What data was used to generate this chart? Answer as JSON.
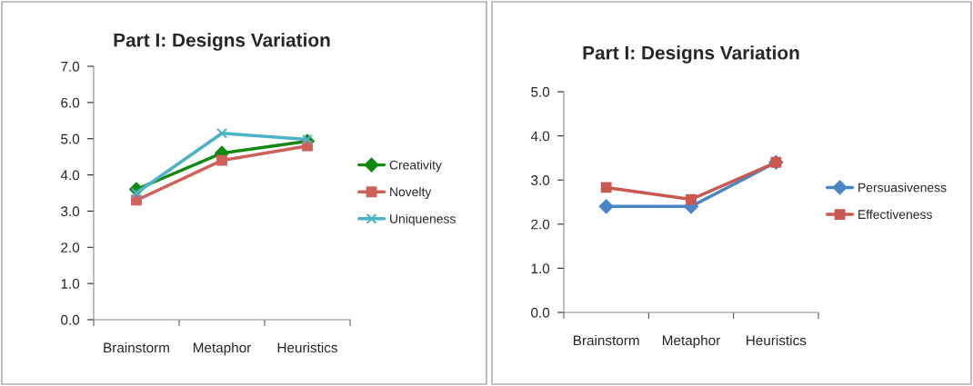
{
  "chart_data": [
    {
      "type": "line",
      "title": "Part I: Designs Variation",
      "categories": [
        "Brainstorm",
        "Metaphor",
        "Heuristics"
      ],
      "ylim": [
        0,
        7
      ],
      "yticks": [
        {
          "value": 0,
          "label": "0.0"
        },
        {
          "value": 1,
          "label": "1.0"
        },
        {
          "value": 2,
          "label": "2.0"
        },
        {
          "value": 3,
          "label": "3.0"
        },
        {
          "value": 4,
          "label": "4.0"
        },
        {
          "value": 5,
          "label": "5.0"
        },
        {
          "value": 6,
          "label": "6.0"
        },
        {
          "value": 7,
          "label": "7.0"
        }
      ],
      "grid": false,
      "legend": "right",
      "series": [
        {
          "name": "Creativity",
          "color": "#128a12",
          "marker": "diamond",
          "values": [
            3.6,
            4.6,
            4.93
          ]
        },
        {
          "name": "Novelty",
          "color": "#d0605a",
          "marker": "square",
          "values": [
            3.3,
            4.4,
            4.8
          ]
        },
        {
          "name": "Uniqueness",
          "color": "#4bb3c8",
          "marker": "cross",
          "values": [
            3.5,
            5.15,
            4.98
          ]
        }
      ]
    },
    {
      "type": "line",
      "title": "Part I: Designs Variation",
      "categories": [
        "Brainstorm",
        "Metaphor",
        "Heuristics"
      ],
      "ylim": [
        0,
        5
      ],
      "yticks": [
        {
          "value": 0,
          "label": "0.0"
        },
        {
          "value": 1,
          "label": "1.0"
        },
        {
          "value": 2,
          "label": "2.0"
        },
        {
          "value": 3,
          "label": "3.0"
        },
        {
          "value": 4,
          "label": "4.0"
        },
        {
          "value": 5,
          "label": "5.0"
        }
      ],
      "grid": false,
      "legend": "right",
      "series": [
        {
          "name": "Persuasiveness",
          "color": "#4a86c5",
          "marker": "diamond",
          "values": [
            2.4,
            2.4,
            3.4
          ]
        },
        {
          "name": "Effectiveness",
          "color": "#c9584f",
          "marker": "square",
          "values": [
            2.83,
            2.56,
            3.4
          ]
        }
      ]
    }
  ]
}
